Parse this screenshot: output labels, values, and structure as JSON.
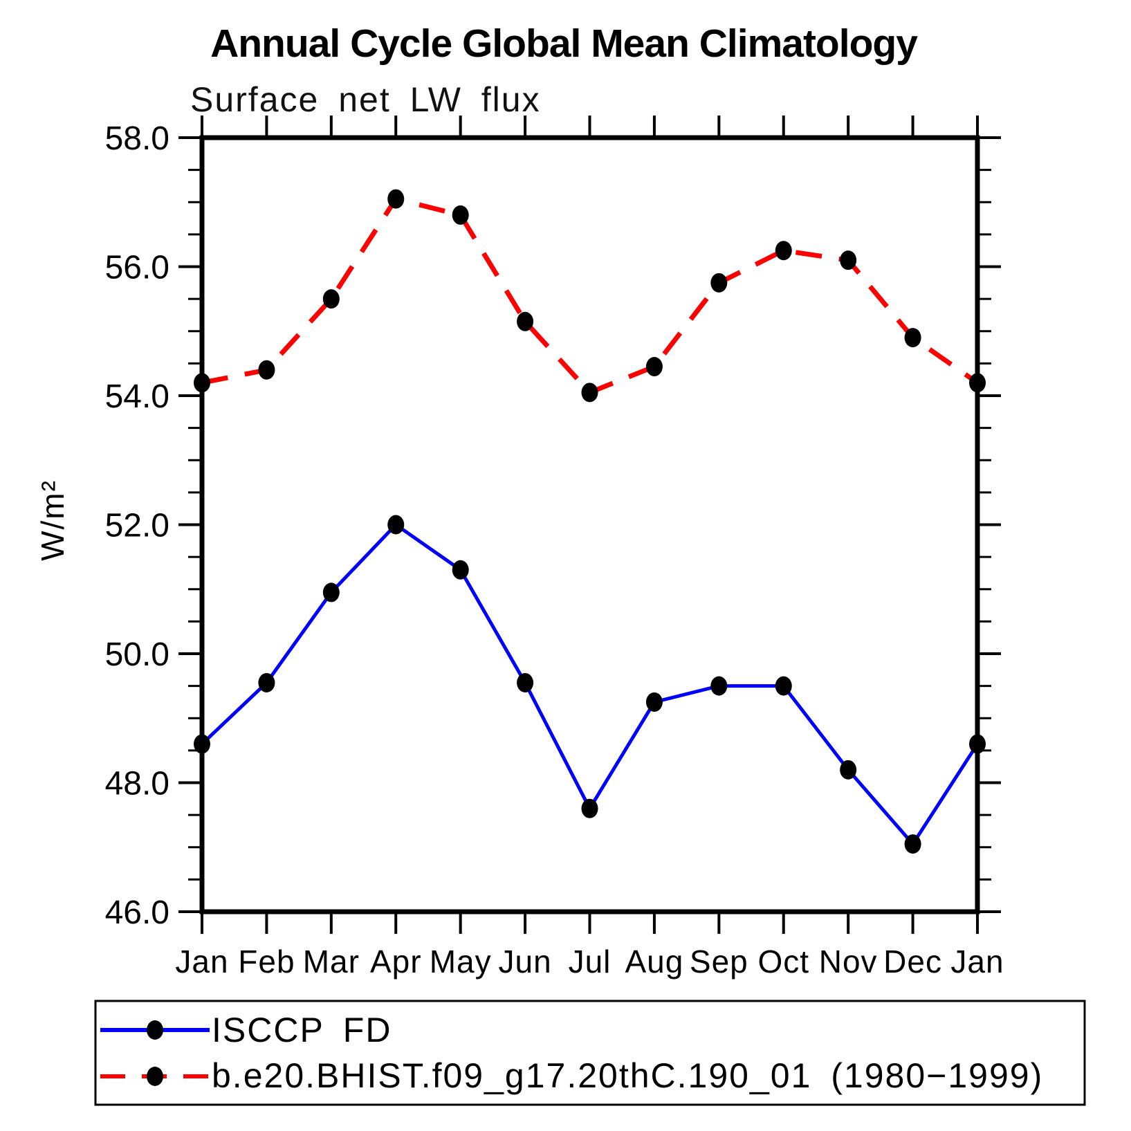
{
  "header": {
    "title": "Annual Cycle Global Mean Climatology",
    "subtitle": "Surface net LW flux"
  },
  "chart_data": {
    "type": "line",
    "title": "Annual Cycle Global Mean Climatology",
    "subtitle": "Surface net LW flux",
    "xlabel": "",
    "ylabel": "W/m²",
    "categories": [
      "Jan",
      "Feb",
      "Mar",
      "Apr",
      "May",
      "Jun",
      "Jul",
      "Aug",
      "Sep",
      "Oct",
      "Nov",
      "Dec",
      "Jan"
    ],
    "ylim": [
      46.0,
      58.0
    ],
    "ytick_major_interval": 2.0,
    "ytick_minor_interval": 0.5,
    "ytick_labels": [
      "46.0",
      "48.0",
      "50.0",
      "52.0",
      "54.0",
      "56.0",
      "58.0"
    ],
    "grid": false,
    "legend_position": "bottom-left-box",
    "series": [
      {
        "name": "ISCCP FD",
        "color": "#0000ff",
        "line_style": "solid",
        "marker": "filled-circle",
        "marker_color": "#000000",
        "values": [
          48.6,
          49.55,
          50.95,
          52.0,
          51.3,
          49.55,
          47.6,
          49.25,
          49.5,
          49.5,
          48.2,
          47.05,
          48.6
        ]
      },
      {
        "name": "b.e20.BHIST.f09_g17.20thC.190_01 (1980−1999)",
        "color": "#ff0000",
        "line_style": "dashed",
        "marker": "filled-circle",
        "marker_color": "#000000",
        "values": [
          54.2,
          54.4,
          55.5,
          57.05,
          56.8,
          55.15,
          54.05,
          54.45,
          55.75,
          56.25,
          56.1,
          54.9,
          54.2
        ]
      }
    ]
  },
  "legend": {
    "entries": [
      {
        "label": "ISCCP FD"
      },
      {
        "label": "b.e20.BHIST.f09_g17.20thC.190_01 (1980−1999)"
      }
    ]
  },
  "colors": {
    "axis": "#000000",
    "background": "#ffffff",
    "series1": "#0000ff",
    "series2": "#ff0000",
    "marker": "#000000"
  }
}
